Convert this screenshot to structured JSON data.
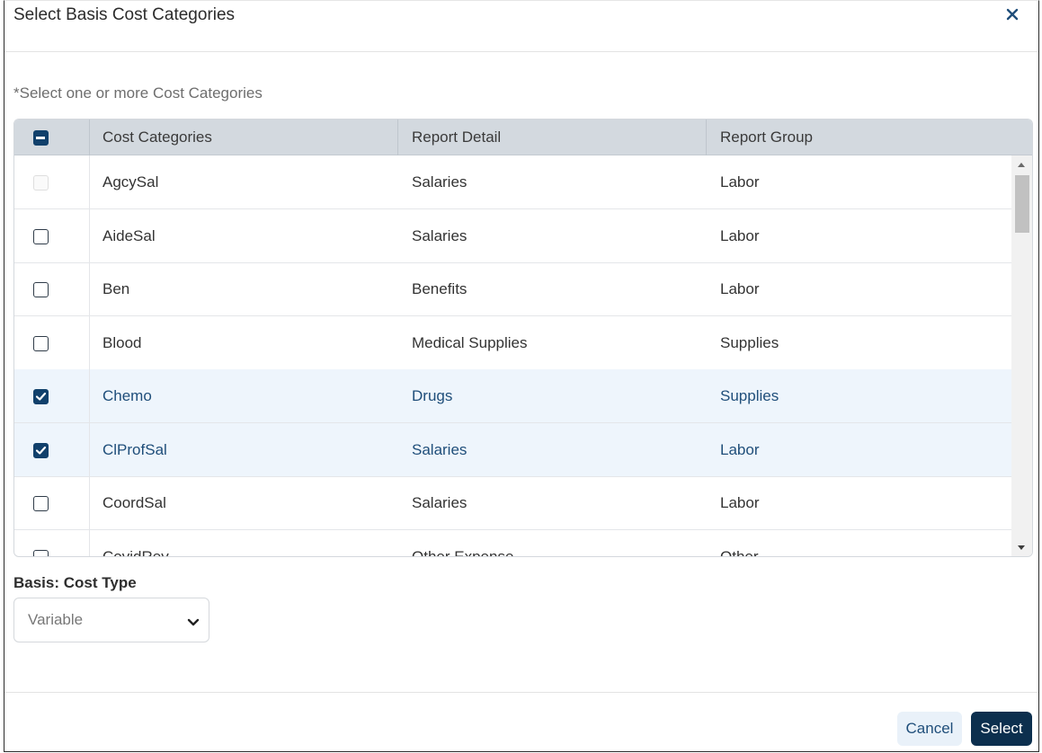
{
  "dialog": {
    "title": "Select Basis Cost Categories",
    "close_icon": "close-icon"
  },
  "hint": "*Select one or more Cost Categories",
  "table": {
    "header_checkbox_state": "indeterminate",
    "columns": [
      "Cost Categories",
      "Report Detail",
      "Report Group"
    ],
    "rows": [
      {
        "category": "AgcySal",
        "detail": "Salaries",
        "group": "Labor",
        "state": "disabled"
      },
      {
        "category": "AideSal",
        "detail": "Salaries",
        "group": "Labor",
        "state": "unchecked"
      },
      {
        "category": "Ben",
        "detail": "Benefits",
        "group": "Labor",
        "state": "unchecked"
      },
      {
        "category": "Blood",
        "detail": "Medical Supplies",
        "group": "Supplies",
        "state": "unchecked"
      },
      {
        "category": "Chemo",
        "detail": "Drugs",
        "group": "Supplies",
        "state": "checked"
      },
      {
        "category": "ClProfSal",
        "detail": "Salaries",
        "group": "Labor",
        "state": "checked"
      },
      {
        "category": "CoordSal",
        "detail": "Salaries",
        "group": "Labor",
        "state": "unchecked"
      },
      {
        "category": "CovidRev",
        "detail": "Other Expense",
        "group": "Other",
        "state": "unchecked"
      }
    ]
  },
  "basis": {
    "label": "Basis: Cost Type",
    "value": "Variable"
  },
  "footer": {
    "cancel_label": "Cancel",
    "select_label": "Select"
  },
  "colors": {
    "accent": "#0c2f4e",
    "selected_row_bg": "#eef5fc",
    "header_bg": "#d3d9df"
  }
}
